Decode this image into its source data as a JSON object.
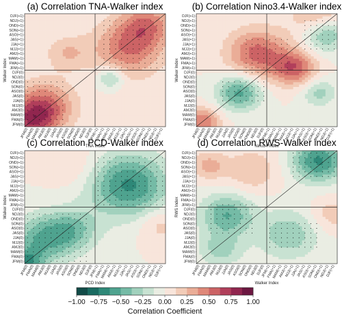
{
  "chart_data": [
    {
      "type": "heatmap",
      "panel": "a",
      "title": "(a) Correlation TNA-Walker index",
      "xlabel": "TNA Index",
      "ylabel": "Walker Index",
      "categories": [
        "JFM(0)",
        "FMA(0)",
        "MAM(0)",
        "AMJ(0)",
        "MJJ(0)",
        "JJA(0)",
        "JAS(0)",
        "ASO(0)",
        "SON(0)",
        "OND(0)",
        "NDJ(0)",
        "DJF(0)",
        "JFM(+1)",
        "FMA(+1)",
        "MAM(+1)",
        "AMJ(+1)",
        "MJJ(+1)",
        "JJA(+1)",
        "JAS(+1)",
        "ASO(+1)",
        "SON(+1)",
        "OND(+1)",
        "NDJ(+1)",
        "DJF(+1)"
      ],
      "features": [
        {
          "x": 3,
          "y": 4,
          "value": 0.6,
          "spread": 3.5
        },
        {
          "x": 1,
          "y": 1,
          "value": 0.45,
          "spread": 2.5
        },
        {
          "x": 17,
          "y": 16,
          "value": 0.5,
          "spread": 4.0
        },
        {
          "x": 20,
          "y": 21,
          "value": 0.4,
          "spread": 3.0
        },
        {
          "x": 14,
          "y": 10,
          "value": -0.35,
          "spread": 1.5
        },
        {
          "x": 7,
          "y": 15,
          "value": 0.25,
          "spread": 2.5
        }
      ],
      "significant_regions": [
        {
          "x": [
            0,
            6
          ],
          "y": [
            0,
            9
          ]
        },
        {
          "x": [
            13,
            23
          ],
          "y": [
            12,
            22
          ]
        }
      ]
    },
    {
      "type": "heatmap",
      "panel": "b",
      "title": "(b) Correlation Nino3.4-Walker index",
      "xlabel": "Nino34 Index",
      "ylabel": "Walker Index",
      "categories": [
        "JFM(0)",
        "FMA(0)",
        "MAM(0)",
        "AMJ(0)",
        "MJJ(0)",
        "JJA(0)",
        "JAS(0)",
        "ASO(0)",
        "SON(0)",
        "OND(0)",
        "NDJ(0)",
        "DJF(0)",
        "JFM(+1)",
        "FMA(+1)",
        "MAM(+1)",
        "AMJ(+1)",
        "MJJ(+1)",
        "JJA(+1)",
        "JAS(+1)",
        "ASO(+1)",
        "SON(+1)",
        "OND(+1)",
        "NDJ(+1)",
        "DJF(+1)"
      ],
      "features": [
        {
          "x": 10,
          "y": 15,
          "value": 0.55,
          "spread": 3.5
        },
        {
          "x": 1,
          "y": 1,
          "value": 0.5,
          "spread": 2.0
        },
        {
          "x": 16,
          "y": 12,
          "value": 0.55,
          "spread": 2.5
        },
        {
          "x": 20,
          "y": 22,
          "value": 0.35,
          "spread": 3.0
        },
        {
          "x": 7,
          "y": 7,
          "value": -0.55,
          "spread": 2.5
        },
        {
          "x": 21,
          "y": 19,
          "value": -0.5,
          "spread": 2.5
        },
        {
          "x": 20,
          "y": 7,
          "value": -0.3,
          "spread": 2.0
        }
      ],
      "significant_regions": [
        {
          "x": [
            4,
            11
          ],
          "y": [
            5,
            9
          ]
        },
        {
          "x": [
            8,
            15
          ],
          "y": [
            11,
            18
          ]
        },
        {
          "x": [
            18,
            23
          ],
          "y": [
            16,
            22
          ]
        }
      ]
    },
    {
      "type": "heatmap",
      "panel": "c",
      "title": "(c) Correlation PCD-Walker index",
      "xlabel": "PCD Index",
      "ylabel": "Walker Index",
      "categories": [
        "JFM(0)",
        "FMA(0)",
        "MAM(0)",
        "AMJ(0)",
        "MJJ(0)",
        "JJA(0)",
        "JAS(0)",
        "ASO(0)",
        "SON(0)",
        "OND(0)",
        "NDJ(0)",
        "DJF(0)",
        "JFM(+1)",
        "FMA(+1)",
        "MAM(+1)",
        "AMJ(+1)",
        "MJJ(+1)",
        "JJA(+1)",
        "JAS(+1)",
        "ASO(+1)",
        "SON(+1)",
        "OND(+1)",
        "NDJ(+1)",
        "DJF(+1)"
      ],
      "features": [
        {
          "x": 17,
          "y": 16,
          "value": -0.65,
          "spread": 4.5
        },
        {
          "x": 3,
          "y": 5,
          "value": -0.5,
          "spread": 3.5
        },
        {
          "x": 8,
          "y": 7,
          "value": -0.35,
          "spread": 3.0
        },
        {
          "x": 0,
          "y": 0,
          "value": -0.6,
          "spread": 2.0
        },
        {
          "x": 22,
          "y": 8,
          "value": 0.2,
          "spread": 2.5
        },
        {
          "x": 8,
          "y": 20,
          "value": 0.15,
          "spread": 3.0
        }
      ],
      "significant_regions": [
        {
          "x": [
            0,
            10
          ],
          "y": [
            0,
            10
          ]
        },
        {
          "x": [
            12,
            23
          ],
          "y": [
            12,
            22
          ]
        }
      ]
    },
    {
      "type": "heatmap",
      "panel": "d",
      "title": "(d) Correlation RWS-Walker index",
      "xlabel": "Walker Index",
      "ylabel": "RWS Index",
      "categories": [
        "JFM(0)",
        "FMA(0)",
        "MAM(0)",
        "AMJ(0)",
        "MJJ(0)",
        "JJA(0)",
        "JAS(0)",
        "ASO(0)",
        "SON(0)",
        "OND(0)",
        "NDJ(0)",
        "DJF(0)",
        "JFM(+1)",
        "FMA(+1)",
        "MAM(+1)",
        "AMJ(+1)",
        "MJJ(+1)",
        "JJA(+1)",
        "JAS(+1)",
        "ASO(+1)",
        "SON(+1)",
        "OND(+1)",
        "NDJ(+1)",
        "DJF(+1)"
      ],
      "features": [
        {
          "x": 20,
          "y": 21,
          "value": -0.65,
          "spread": 3.0
        },
        {
          "x": 5,
          "y": 10,
          "value": -0.5,
          "spread": 3.0
        },
        {
          "x": 15,
          "y": 6,
          "value": -0.35,
          "spread": 3.5
        },
        {
          "x": 4,
          "y": 3,
          "value": -0.3,
          "spread": 2.5
        },
        {
          "x": 9,
          "y": 19,
          "value": 0.25,
          "spread": 3.0
        },
        {
          "x": 2,
          "y": 20,
          "value": 0.3,
          "spread": 2.0
        },
        {
          "x": 22,
          "y": 10,
          "value": 0.2,
          "spread": 2.5
        }
      ],
      "significant_regions": [
        {
          "x": [
            2,
            9
          ],
          "y": [
            6,
            12
          ]
        },
        {
          "x": [
            16,
            23
          ],
          "y": [
            18,
            23
          ]
        },
        {
          "x": [
            12,
            20
          ],
          "y": [
            3,
            8
          ]
        }
      ]
    }
  ],
  "colorbar": {
    "label": "Correlation Coefficient",
    "range": [
      -1.0,
      1.0
    ],
    "ticks": [
      "−1.00",
      "−0.75",
      "−0.50",
      "−0.25",
      "0.00",
      "0.25",
      "0.50",
      "0.75",
      "1.00"
    ],
    "colors": [
      "#0d3b3a",
      "#1d7a6c",
      "#5fb09a",
      "#b7dcc9",
      "#fbf2ec",
      "#efbfa6",
      "#d9756a",
      "#a32d56",
      "#5a0f3a"
    ]
  }
}
